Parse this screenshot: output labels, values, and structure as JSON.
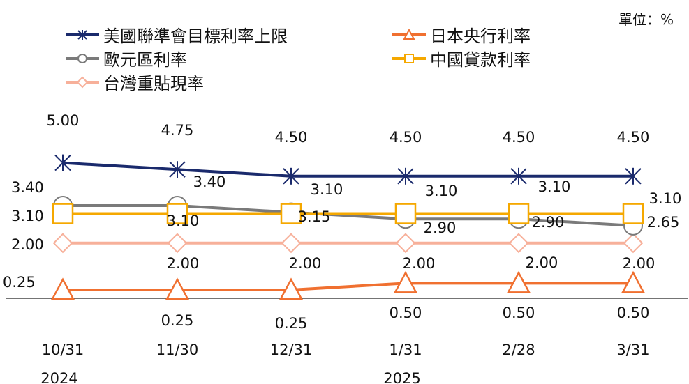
{
  "unit_label": "單位：%",
  "chart_data": {
    "type": "line",
    "categories": [
      "10/31",
      "11/30",
      "12/31",
      "1/31",
      "2/28",
      "3/31"
    ],
    "year_labels": [
      "2024",
      "",
      "",
      "2025",
      "",
      ""
    ],
    "series": [
      {
        "name": "美國聯準會目標利率上限",
        "values": [
          5.0,
          4.75,
          4.5,
          4.5,
          4.5,
          4.5
        ],
        "color": "#1a2a6c",
        "marker": "star",
        "labels": [
          "5.00",
          "4.75",
          "4.50",
          "4.50",
          "4.50",
          "4.50"
        ]
      },
      {
        "name": "日本央行利率",
        "values": [
          0.25,
          0.25,
          0.25,
          0.5,
          0.5,
          0.5
        ],
        "color": "#f07030",
        "marker": "triangle",
        "labels": [
          "0.25",
          "0.25",
          "0.25",
          "0.50",
          "0.50",
          "0.50"
        ]
      },
      {
        "name": "歐元區利率",
        "values": [
          3.4,
          3.4,
          3.15,
          2.9,
          2.9,
          2.65
        ],
        "color": "#7a7a7a",
        "marker": "circle",
        "labels": [
          "3.40",
          "3.40",
          "3.15",
          "2.90",
          "2.90",
          "2.65"
        ]
      },
      {
        "name": "中國貸款利率",
        "values": [
          3.1,
          3.1,
          3.1,
          3.1,
          3.1,
          3.1
        ],
        "color": "#f5a800",
        "marker": "square",
        "labels": [
          "3.10",
          "3.10",
          "3.10",
          "3.10",
          "3.10",
          "3.10"
        ]
      },
      {
        "name": "台灣重貼現率",
        "values": [
          2.0,
          2.0,
          2.0,
          2.0,
          2.0,
          2.0
        ],
        "color": "#f7b09a",
        "marker": "diamond",
        "labels": [
          "2.00",
          "2.00",
          "2.00",
          "2.00",
          "2.00",
          "2.00"
        ]
      }
    ],
    "grid": false,
    "legend_position": "top"
  }
}
